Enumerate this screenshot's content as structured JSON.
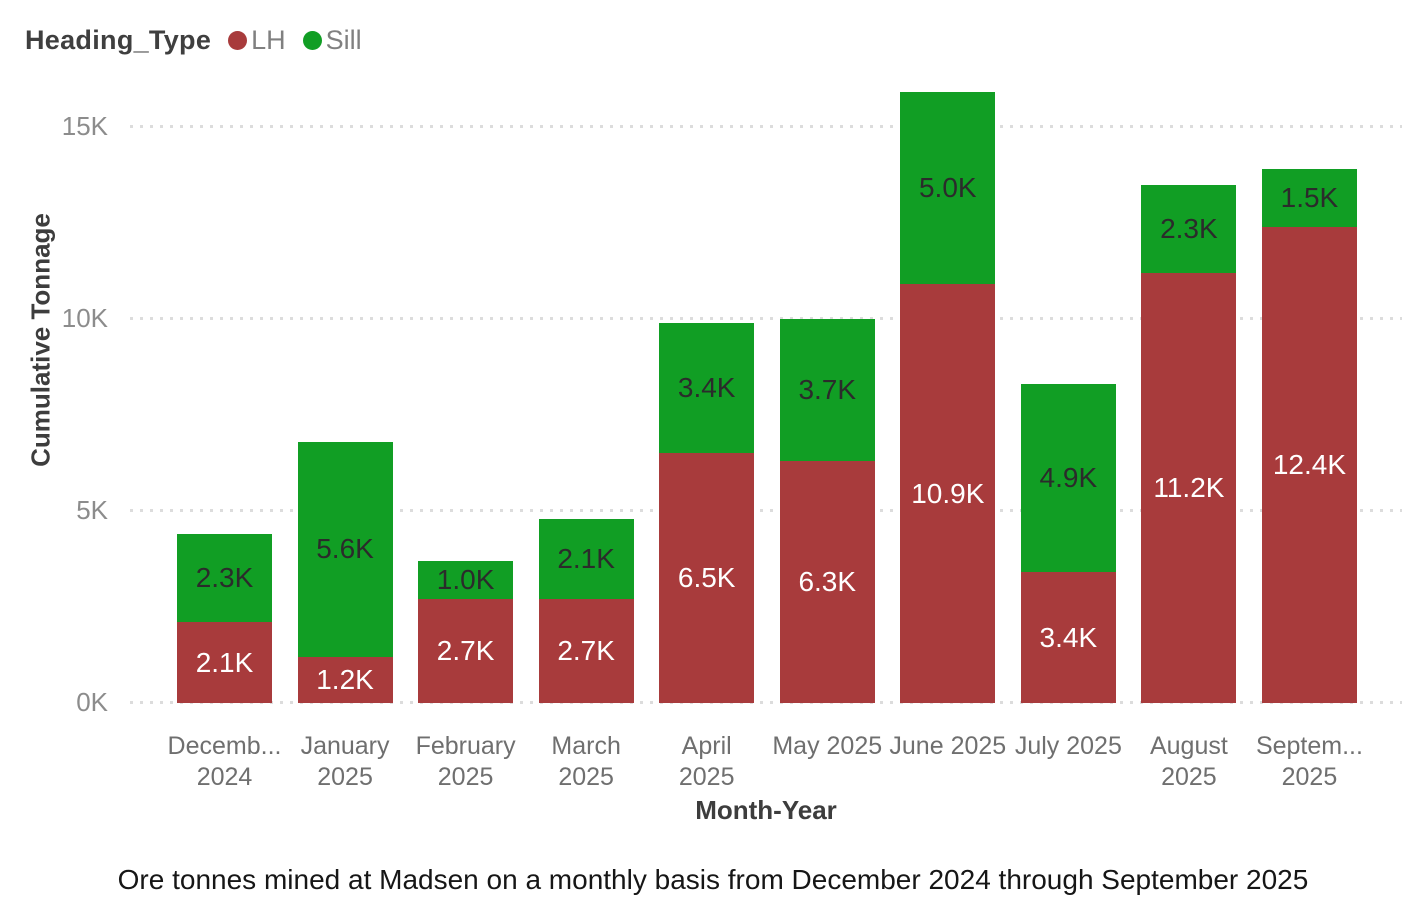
{
  "legend": {
    "title": "Heading_Type",
    "items": [
      {
        "label": "LH",
        "color": "#a83b3c"
      },
      {
        "label": "Sill",
        "color": "#119e24"
      }
    ]
  },
  "caption": "Ore tonnes mined at Madsen on a monthly basis from December 2024 through September 2025",
  "chart_data": {
    "type": "bar",
    "stacked": true,
    "title": "",
    "xlabel": "Month-Year",
    "ylabel": "Cumulative Tonnage",
    "ylim": [
      0,
      16000
    ],
    "grid": "dotted-horizontal",
    "legend_position": "top-left",
    "yticks": [
      {
        "value": 0,
        "label": "0K"
      },
      {
        "value": 5000,
        "label": "5K"
      },
      {
        "value": 10000,
        "label": "10K"
      },
      {
        "value": 15000,
        "label": "15K"
      }
    ],
    "categories": [
      {
        "lines": [
          "Decemb...",
          "2024"
        ]
      },
      {
        "lines": [
          "January",
          "2025"
        ]
      },
      {
        "lines": [
          "February",
          "2025"
        ]
      },
      {
        "lines": [
          "March",
          "2025"
        ]
      },
      {
        "lines": [
          "April",
          "2025"
        ]
      },
      {
        "lines": [
          "May 2025"
        ]
      },
      {
        "lines": [
          "June 2025"
        ]
      },
      {
        "lines": [
          "July 2025"
        ]
      },
      {
        "lines": [
          "August",
          "2025"
        ]
      },
      {
        "lines": [
          "Septem...",
          "2025"
        ]
      }
    ],
    "series": [
      {
        "name": "LH",
        "color": "#a83b3c",
        "label_color": "#ffffff",
        "values": [
          2100,
          1200,
          2700,
          2700,
          6500,
          6300,
          10900,
          3400,
          11200,
          12400
        ],
        "labels": [
          "2.1K",
          "1.2K",
          "2.7K",
          "2.7K",
          "6.5K",
          "6.3K",
          "10.9K",
          "3.4K",
          "11.2K",
          "12.4K"
        ]
      },
      {
        "name": "Sill",
        "color": "#119e24",
        "label_color": "#2b2b2b",
        "values": [
          2300,
          5600,
          1000,
          2100,
          3400,
          3700,
          5000,
          4900,
          2300,
          1500
        ],
        "labels": [
          "2.3K",
          "5.6K",
          "1.0K",
          "2.1K",
          "3.4K",
          "3.7K",
          "5.0K",
          "4.9K",
          "2.3K",
          "1.5K"
        ]
      }
    ]
  }
}
